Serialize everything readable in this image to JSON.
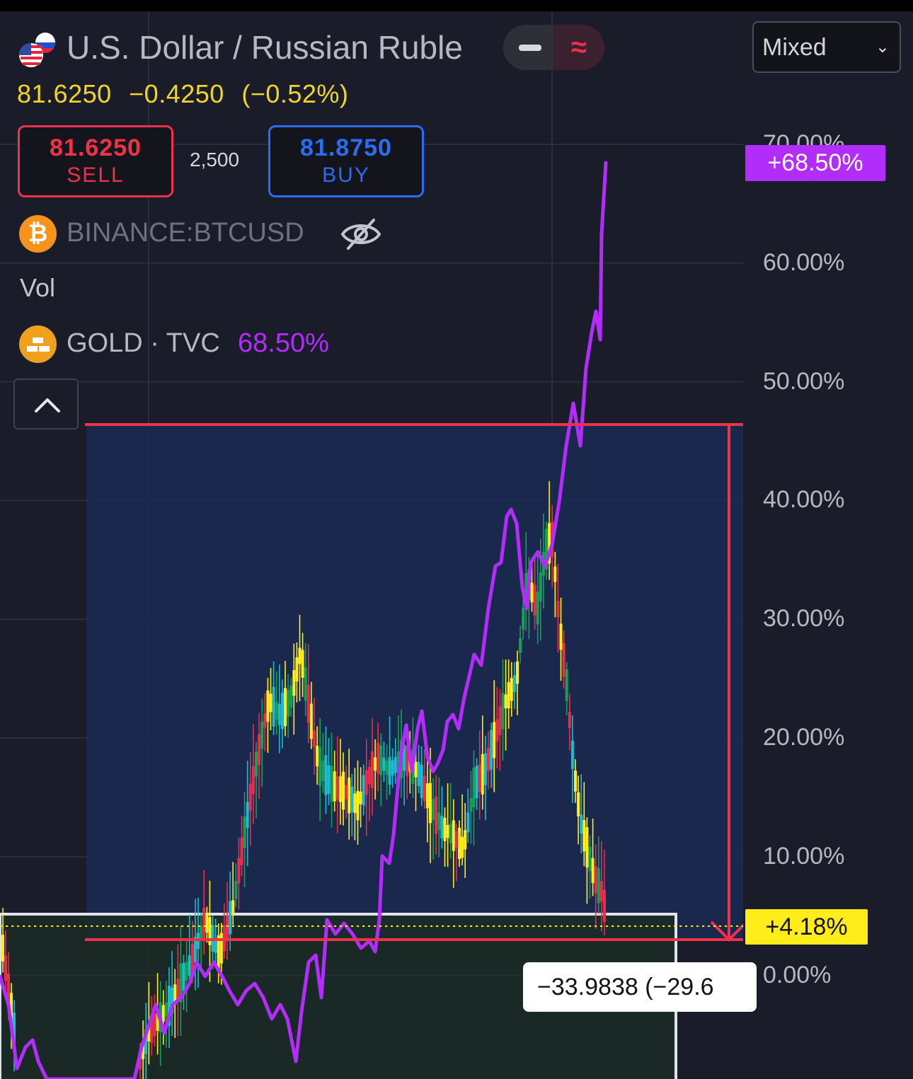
{
  "symbol": {
    "title": "U.S. Dollar / Russian Ruble",
    "flag_icon": "usd-rub-flag-icon"
  },
  "quote": {
    "last": "81.6250",
    "change": "−0.4250",
    "change_pct": "(−0.52%)"
  },
  "trade": {
    "sell_price": "81.6250",
    "sell_label": "SELL",
    "spread": "2,500",
    "buy_price": "81.8750",
    "buy_label": "BUY"
  },
  "toolbar": {
    "mode_toggle_left_icon": "minus-icon",
    "mode_toggle_right_icon": "approx-icon",
    "mode_toggle_right_glyph": "≈",
    "scale_select": "Mixed"
  },
  "legend": {
    "btc_label": "BINANCE:BTCUSD",
    "btc_icon": "bitcoin-icon",
    "btc_glyph": "₿",
    "hide_icon": "eye-off-icon",
    "vol_label": "Vol",
    "gold_label": "GOLD · TVC",
    "gold_value": "68.50%",
    "gold_icon": "gold-bars-icon"
  },
  "price_axis": {
    "labels": [
      "70.00%",
      "60.00%",
      "50.00%",
      "40.00%",
      "30.00%",
      "20.00%",
      "10.00%",
      "0.00%"
    ],
    "gold_badge": "+68.50%",
    "current_badge": "+4.18%"
  },
  "measure_tool": {
    "label": "−33.9838 (−29.6"
  },
  "colors": {
    "background": "#1a1d29",
    "gold_line": "#b32dfa",
    "sell": "#f0314a",
    "buy": "#2a6df0",
    "candle_yellow": "#ffee1a",
    "candle_cyan": "#1cbbd0",
    "candle_green": "#199e58",
    "candle_red": "#e82e4c",
    "range_fill": "#1b2a55",
    "highlight": "#ffec1a"
  }
}
